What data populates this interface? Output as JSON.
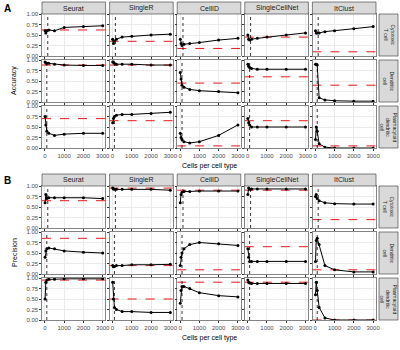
{
  "chart_data": {
    "type": "line",
    "xlabel": "Cells per cell type",
    "x": [
      10,
      50,
      100,
      200,
      500,
      1000,
      2000,
      3000
    ],
    "xlim": [
      -150,
      3150
    ],
    "xticks": [
      0,
      1000,
      2000,
      3000
    ],
    "ylim": [
      0,
      1
    ],
    "yticks": [
      {
        "value": 0,
        "label": "0.00"
      },
      {
        "value": 0.25,
        "label": "0.25"
      },
      {
        "value": 0.5,
        "label": "0.50"
      },
      {
        "value": 0.75,
        "label": "0.75"
      },
      {
        "value": 1,
        "label": "1.00"
      }
    ],
    "grid": true,
    "color": "#000000",
    "marker": "circle",
    "line_style": "solid",
    "baseline": {
      "color": "#e41a1c",
      "line_style": "dash"
    },
    "reference": {
      "color": "#000000",
      "line_style": "dot"
    },
    "reference_x": [
      150,
      100,
      100
    ],
    "columns": [
      "Seurat",
      "SingleR",
      "CellID",
      "SingleCellNet",
      "ItClust"
    ],
    "rows": [
      "Cytotoxic\nT cell",
      "Dendritic\ncell",
      "Plasmacytoid\ndendritic\ncell"
    ],
    "panels": [
      {
        "label": "A",
        "ylabel": "Accuracy",
        "facets": [
          [
            {
              "values": [
                0.6,
                0.55,
                0.6,
                0.62,
                0.6,
                0.68,
                0.7,
                0.72
              ],
              "baseline": 0.62
            },
            {
              "values": [
                0.4,
                0.3,
                0.35,
                0.4,
                0.45,
                0.47,
                0.5,
                0.52
              ],
              "baseline": 0.35
            },
            {
              "values": [
                0.4,
                0.3,
                0.25,
                0.28,
                0.3,
                0.32,
                0.38,
                0.42
              ],
              "baseline": 0.18
            },
            {
              "values": [
                0.5,
                0.4,
                0.38,
                0.4,
                0.42,
                0.45,
                0.5,
                0.55
              ],
              "baseline": 0.45
            },
            {
              "values": [
                0.6,
                0.55,
                0.55,
                0.55,
                0.58,
                0.6,
                0.65,
                0.7
              ],
              "baseline": 0.1
            }
          ],
          [
            {
              "values": [
                0.95,
                0.93,
                0.92,
                0.92,
                0.9,
                0.88,
                0.87,
                0.87
              ],
              "baseline": 0.88
            },
            {
              "values": [
                0.95,
                0.95,
                0.92,
                0.9,
                0.9,
                0.9,
                0.88,
                0.88
              ],
              "baseline": 0.88
            },
            {
              "values": [
                0.7,
                0.55,
                0.4,
                0.35,
                0.3,
                0.27,
                0.25,
                0.22
              ],
              "baseline": 0.45
            },
            {
              "values": [
                0.9,
                0.85,
                0.82,
                0.8,
                0.78,
                0.78,
                0.78,
                0.78
              ],
              "baseline": 0.6
            },
            {
              "values": [
                0.9,
                0.9,
                0.88,
                0.1,
                0.05,
                0.03,
                0.02,
                0.02
              ],
              "baseline": 0.4
            }
          ],
          [
            {
              "values": [
                0.75,
                0.55,
                0.4,
                0.35,
                0.3,
                0.33,
                0.35,
                0.35
              ],
              "baseline": 0.7
            },
            {
              "values": [
                0.6,
                0.7,
                0.75,
                0.78,
                0.8,
                0.8,
                0.82,
                0.85
              ],
              "baseline": 0.65
            },
            {
              "values": [
                0.35,
                0.25,
                0.2,
                0.15,
                0.12,
                0.15,
                0.3,
                0.55
              ],
              "baseline": 0.05
            },
            {
              "values": [
                0.7,
                0.6,
                0.55,
                0.5,
                0.5,
                0.5,
                0.5,
                0.5
              ],
              "baseline": 0.65
            },
            {
              "values": [
                0.2,
                0.5,
                0.4,
                0.1,
                0.02,
                0,
                0,
                0
              ],
              "baseline": 0.05
            }
          ]
        ]
      },
      {
        "label": "B",
        "ylabel": "Precision",
        "facets": [
          [
            {
              "values": [
                0.6,
                0.8,
                0.7,
                0.72,
                0.72,
                0.72,
                0.72,
                0.7
              ],
              "baseline": 0.65
            },
            {
              "values": [
                0.95,
                0.93,
                0.92,
                0.92,
                0.92,
                0.92,
                0.92,
                0.9
              ],
              "baseline": 0.95
            },
            {
              "values": [
                0.6,
                0.8,
                0.85,
                0.87,
                0.87,
                0.88,
                0.88,
                0.88
              ],
              "baseline": 0.9
            },
            {
              "values": [
                0.8,
                0.95,
                0.93,
                0.93,
                0.93,
                0.93,
                0.93,
                0.93
              ],
              "baseline": 0.9
            },
            {
              "values": [
                0.75,
                0.8,
                0.7,
                0.65,
                0.6,
                0.58,
                0.57,
                0.57
              ],
              "baseline": 0.2
            }
          ],
          [
            {
              "values": [
                0.4,
                0.55,
                0.6,
                0.62,
                0.6,
                0.55,
                0.52,
                0.5
              ],
              "baseline": 0.85
            },
            {
              "values": [
                0.2,
                0.17,
                0.18,
                0.2,
                0.2,
                0.22,
                0.22,
                0.23
              ],
              "baseline": 0.2
            },
            {
              "values": [
                0.2,
                0.4,
                0.5,
                0.6,
                0.7,
                0.75,
                0.72,
                0.68
              ],
              "baseline": 0.1
            },
            {
              "values": [
                0.6,
                0.4,
                0.3,
                0.3,
                0.3,
                0.3,
                0.3,
                0.3
              ],
              "baseline": 0.65
            },
            {
              "values": [
                0.3,
                0.8,
                0.85,
                0.7,
                0.2,
                0.1,
                0.05,
                0.05
              ],
              "baseline": 0.1
            }
          ],
          [
            {
              "values": [
                0.5,
                0.9,
                0.95,
                0.97,
                0.97,
                0.98,
                0.98,
                0.98
              ],
              "baseline": 0.95
            },
            {
              "values": [
                0.9,
                0.5,
                0.3,
                0.25,
                0.2,
                0.2,
                0.18,
                0.18
              ],
              "baseline": 0.5
            },
            {
              "values": [
                0.4,
                0.7,
                0.8,
                0.8,
                0.75,
                0.65,
                0.58,
                0.55
              ],
              "baseline": 0.9
            },
            {
              "values": [
                0.95,
                0.9,
                0.88,
                0.87,
                0.87,
                0.87,
                0.87,
                0.87
              ],
              "baseline": 0.9
            },
            {
              "values": [
                0.6,
                0.9,
                0.7,
                0.3,
                0.05,
                0,
                0,
                0
              ],
              "baseline": 0
            }
          ]
        ]
      }
    ]
  }
}
